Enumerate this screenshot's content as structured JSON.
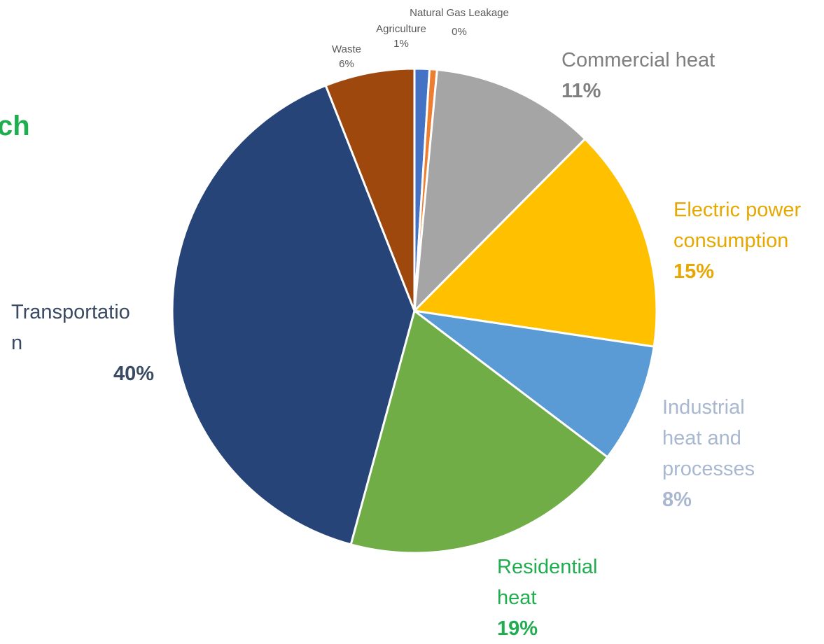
{
  "partial_heading": "ch",
  "chart_data": {
    "type": "pie",
    "start_angle_deg": 0,
    "direction": "clockwise",
    "slices": [
      {
        "label": "Agriculture",
        "value": 1,
        "value_label": "1%",
        "color": "#4472c4"
      },
      {
        "label": "Natural Gas Leakage",
        "value": 0.5,
        "value_label": "0%",
        "color": "#ed7d31"
      },
      {
        "label": "Commercial heat",
        "value": 11,
        "value_label": "11%",
        "color": "#a5a5a5"
      },
      {
        "label": "Electric power consumption",
        "value": 15,
        "value_label": "15%",
        "color": "#ffc000"
      },
      {
        "label": "Industrial heat and processes",
        "value": 8,
        "value_label": "8%",
        "color": "#5b9bd5"
      },
      {
        "label": "Residential heat",
        "value": 19,
        "value_label": "19%",
        "color": "#70ad47"
      },
      {
        "label": "Transportation",
        "value": 40,
        "value_label": "40%",
        "color": "#264478"
      },
      {
        "label": "Waste",
        "value": 6,
        "value_label": "6%",
        "color": "#9e480e"
      }
    ]
  },
  "labels": {
    "natural_gas": {
      "name": "Natural Gas Leakage",
      "pct": "0%"
    },
    "agriculture": {
      "name": "Agriculture",
      "pct": "1%"
    },
    "waste": {
      "name": "Waste",
      "pct": "6%"
    },
    "commercial": {
      "name": "Commercial heat",
      "pct": "11%"
    },
    "electric": {
      "name_l1": "Electric power",
      "name_l2": "consumption",
      "pct": "15%"
    },
    "industrial": {
      "name_l1": "Industrial",
      "name_l2": "heat and",
      "name_l3": "processes",
      "pct": "8%"
    },
    "residential": {
      "name_l1": "Residential",
      "name_l2": "heat",
      "pct": "19%"
    },
    "transportation": {
      "name_l1": "Transportatio",
      "name_l2": "n",
      "pct": "40%"
    }
  }
}
